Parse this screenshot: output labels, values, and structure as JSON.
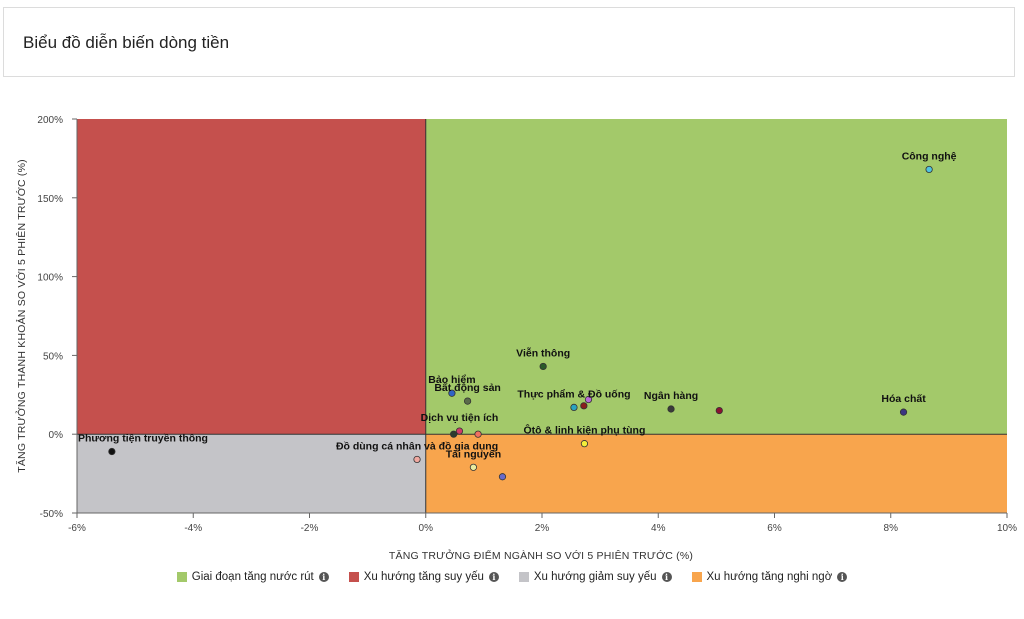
{
  "page": {
    "title": "Biểu đồ diễn biến dòng tiền"
  },
  "chart_data": {
    "type": "scatter",
    "title": "Biểu đồ diễn biến dòng tiền",
    "xlabel": "TĂNG TRƯỞNG ĐIỂM NGÀNH SO VỚI 5 PHIÊN TRƯỚC (%)",
    "ylabel": "TĂNG TRƯỞNG THANH KHOẢN SO VỚI 5 PHIÊN TRƯỚC (%)",
    "xlim": [
      -6,
      10
    ],
    "ylim": [
      -50,
      200
    ],
    "x_ticks": [
      -6,
      -4,
      -2,
      0,
      2,
      4,
      6,
      8,
      10
    ],
    "y_ticks": [
      -50,
      0,
      50,
      100,
      150,
      200
    ],
    "x_tick_labels": [
      "-6%",
      "-4%",
      "-2%",
      "0%",
      "2%",
      "4%",
      "6%",
      "8%",
      "10%"
    ],
    "y_tick_labels": [
      "-50%",
      "0%",
      "50%",
      "100%",
      "150%",
      "200%"
    ],
    "grid": false,
    "legend_position": "bottom",
    "quadrants": [
      {
        "name": "Giai đoạn tăng nước rút",
        "color": "#a3c96a",
        "x": [
          0,
          10
        ],
        "y": [
          0,
          200
        ]
      },
      {
        "name": "Xu hướng tăng suy yếu",
        "color": "#c5504d",
        "x": [
          -6,
          0
        ],
        "y": [
          0,
          200
        ]
      },
      {
        "name": "Xu hướng giảm suy yếu",
        "color": "#c4c4c8",
        "x": [
          -6,
          0
        ],
        "y": [
          -50,
          0
        ]
      },
      {
        "name": "Xu hướng tăng nghi ngờ",
        "color": "#f8a54d",
        "x": [
          0,
          10
        ],
        "y": [
          -50,
          0
        ]
      }
    ],
    "points": [
      {
        "label": "Công nghệ",
        "x": 8.66,
        "y": 168,
        "color": "#4fc3e0"
      },
      {
        "label": "Hóa chất",
        "x": 8.22,
        "y": 14,
        "color": "#3b3582"
      },
      {
        "label": "Viễn thông",
        "x": 2.02,
        "y": 43,
        "color": "#2a5a2a"
      },
      {
        "label": "Bảo hiểm",
        "x": 0.45,
        "y": 26,
        "color": "#2f63c6"
      },
      {
        "label": "Bất động sản",
        "x": 0.72,
        "y": 21,
        "color": "#5a6a4a"
      },
      {
        "label": "Thực phẩm & Đồ uống",
        "x": 2.55,
        "y": 17,
        "color": "#2aa4c0"
      },
      {
        "label": "",
        "x": 2.72,
        "y": 18,
        "color": "#8a1e1e"
      },
      {
        "label": "",
        "x": 2.8,
        "y": 22,
        "color": "#b96ad8"
      },
      {
        "label": "Ngân hàng",
        "x": 4.22,
        "y": 16,
        "color": "#3a3a3a"
      },
      {
        "label": "",
        "x": 5.05,
        "y": 15,
        "color": "#8a1030"
      },
      {
        "label": "Dịch vụ tiện ích",
        "x": 0.58,
        "y": 2,
        "color": "#d13b6a"
      },
      {
        "label": "",
        "x": 0.48,
        "y": 0,
        "color": "#2e3b2e"
      },
      {
        "label": "",
        "x": 0.9,
        "y": 0,
        "color": "#f07060"
      },
      {
        "label": "Ôtô & linh kiện phụ tùng",
        "x": 2.73,
        "y": -6,
        "color": "#f3ee3a"
      },
      {
        "label": "Đồ dùng cá nhân và đồ gia dụng",
        "x": -0.15,
        "y": -16,
        "color": "#f0a8a0"
      },
      {
        "label": "Tài nguyên",
        "x": 0.82,
        "y": -21,
        "color": "#e8eca0"
      },
      {
        "label": "",
        "x": 1.32,
        "y": -27,
        "color": "#6a6ac8"
      },
      {
        "label": "Phương tiện truyền thông",
        "x": -5.4,
        "y": -11,
        "color": "#111111"
      }
    ]
  },
  "legend": {
    "items": [
      {
        "label": "Giai đoạn tăng nước rút",
        "color": "#a3c96a",
        "icon": "info-icon"
      },
      {
        "label": "Xu hướng tăng suy yếu",
        "color": "#c5504d",
        "icon": "info-icon"
      },
      {
        "label": "Xu hướng giảm suy yếu",
        "color": "#c4c4c8",
        "icon": "info-icon"
      },
      {
        "label": "Xu hướng tăng nghi ngờ",
        "color": "#f8a54d",
        "icon": "info-icon"
      }
    ],
    "info_glyph": "i"
  }
}
